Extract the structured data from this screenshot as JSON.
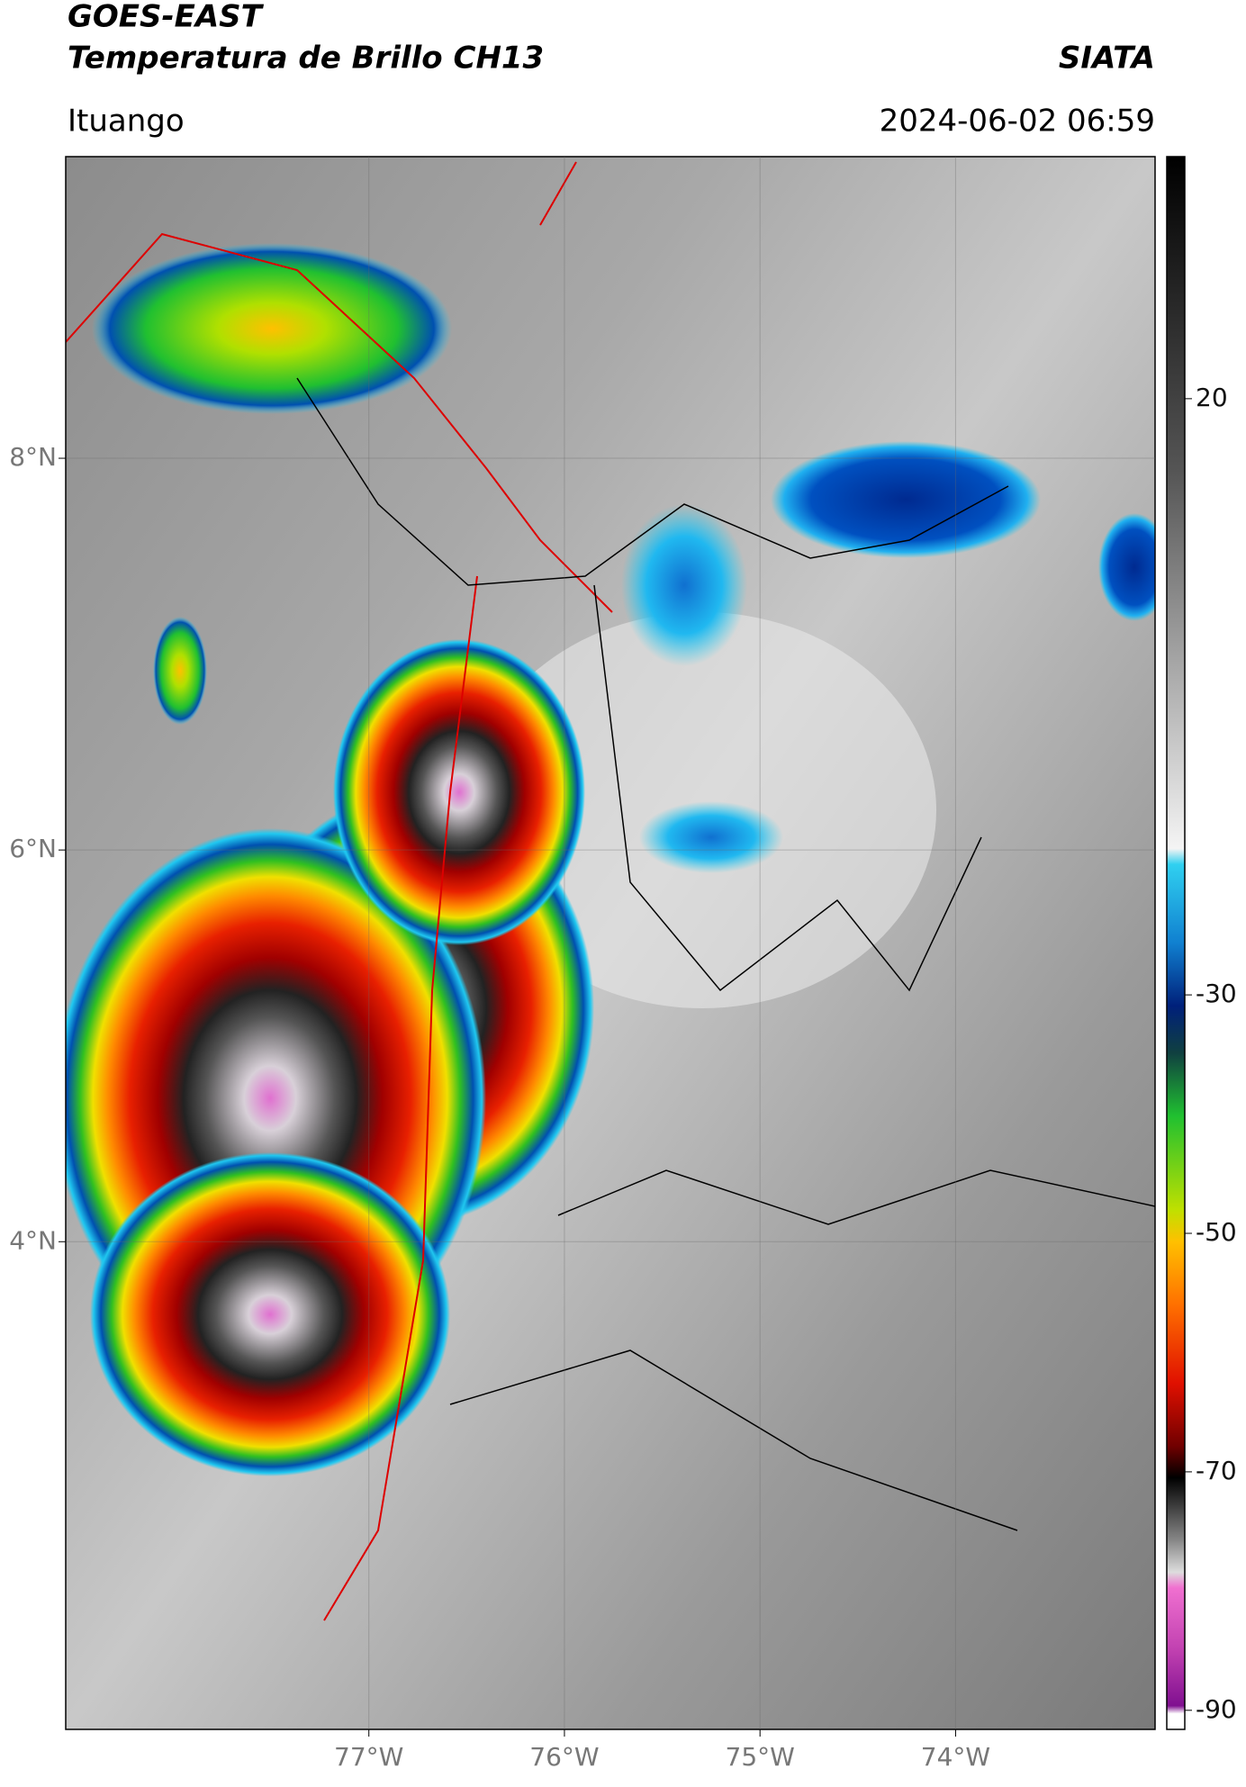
{
  "header": {
    "title": "GOES-EAST",
    "subtitle": "Temperatura de Brillo CH13",
    "source": "SIATA",
    "location": "Ituango",
    "timestamp": "2024-06-02 06:59"
  },
  "map": {
    "xlim": [
      -78.55,
      -72.98
    ],
    "ylim": [
      1.51,
      9.54
    ],
    "xticks": [
      {
        "value": -77,
        "label": "77°W"
      },
      {
        "value": -76,
        "label": "76°W"
      },
      {
        "value": -75,
        "label": "75°W"
      },
      {
        "value": -74,
        "label": "74°W"
      }
    ],
    "yticks": [
      {
        "value": 4,
        "label": "4°N"
      },
      {
        "value": 6,
        "label": "6°N"
      },
      {
        "value": 8,
        "label": "8°N"
      }
    ],
    "grid": true
  },
  "colorbar": {
    "lim": [
      -91.6,
      40.3
    ],
    "ticks": [
      20,
      -30,
      -50,
      -70,
      -90
    ]
  }
}
